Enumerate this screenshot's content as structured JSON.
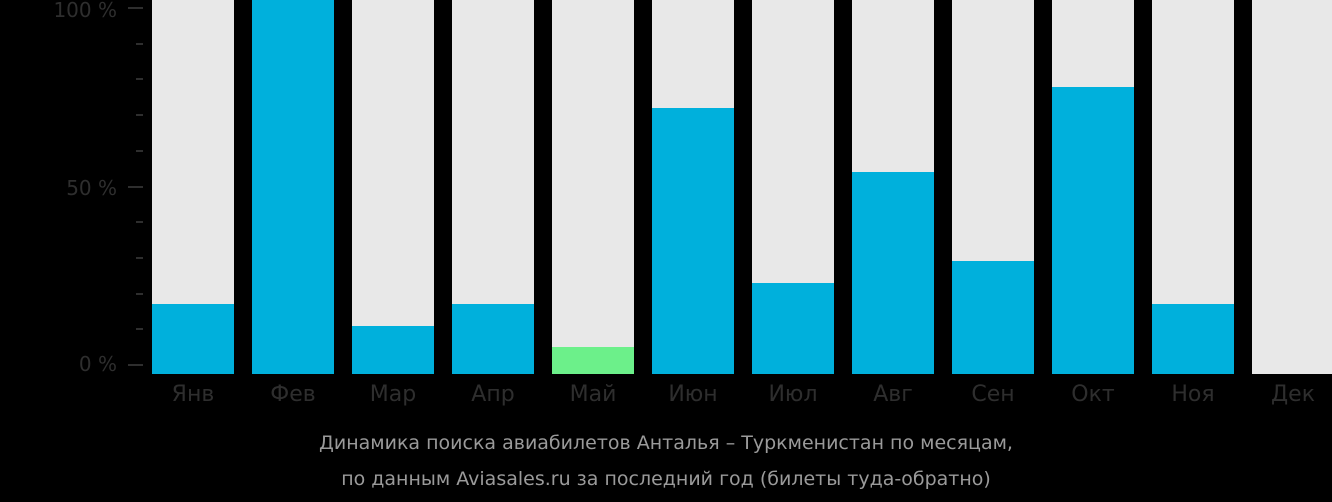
{
  "chart_data": {
    "type": "bar",
    "title": "Динамика поиска авиабилетов Анталья – Туркменистан по месяцам,",
    "subtitle": "по данным Aviasales.ru за последний год (билеты туда-обратно)",
    "categories": [
      "Янв",
      "Фев",
      "Мар",
      "Апр",
      "Май",
      "Июн",
      "Июл",
      "Авг",
      "Сен",
      "Окт",
      "Ноя",
      "Дек"
    ],
    "values": [
      17,
      100,
      11,
      17,
      5,
      72,
      23,
      54,
      29,
      78,
      17,
      0
    ],
    "highlight_index": 4,
    "xlabel": "",
    "ylabel": "",
    "ylim": [
      0,
      100
    ],
    "yticks": [
      "0 %",
      "50 %",
      "100 %"
    ],
    "grid": false,
    "legend": null,
    "colors": {
      "bar": "#00b0dc",
      "highlight": "#6cf08a",
      "background_bar": "#e8e8e8"
    }
  },
  "caption": {
    "line1": "Динамика поиска авиабилетов Анталья – Туркменистан по месяцам,",
    "line2": "по данным Aviasales.ru за последний год (билеты туда-обратно)"
  }
}
